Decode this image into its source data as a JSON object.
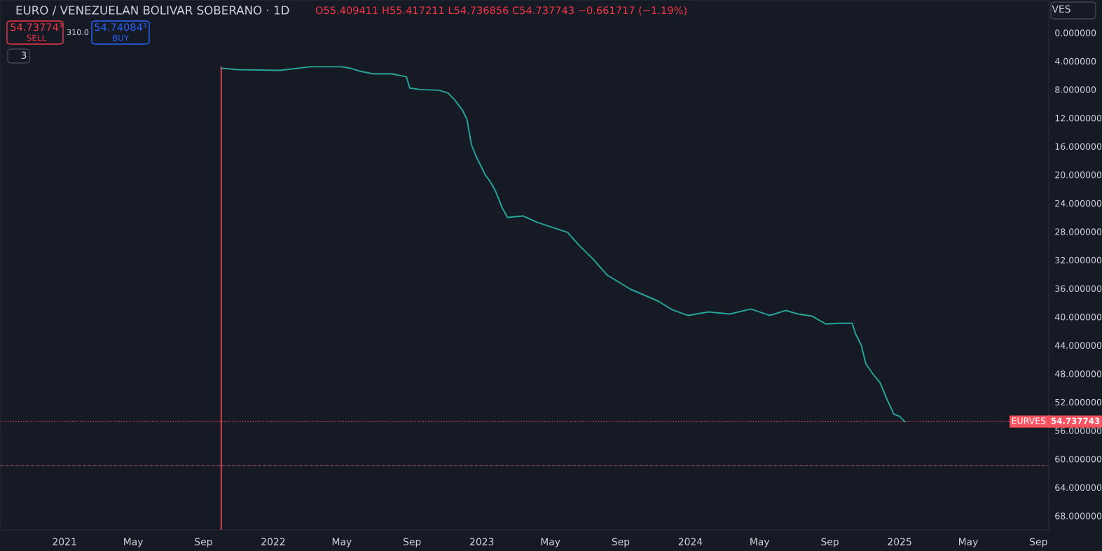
{
  "chart_data": {
    "type": "line",
    "title": "EURO / VENEZUELAN BOLIVAR SOBERANO · 1D",
    "annotations": [
      "O55.409411 H55.417211 L54.736856 C54.737743 −0.661717 (−1.19%)",
      "54.73774³",
      "SELL",
      "310.0",
      "54.74084³",
      "BUY",
      "3",
      "VES",
      "54.737743"
    ],
    "x": [
      "2021-10-02",
      "2021-11-01",
      "2022-01-13",
      "2022-03-07",
      "2022-04-30",
      "2022-05-16",
      "2022-06-01",
      "2022-06-25",
      "2022-07-28",
      "2022-08-22",
      "2022-08-28",
      "2022-09-15",
      "2022-10-18",
      "2022-11-03",
      "2022-11-15",
      "2022-11-28",
      "2022-12-06",
      "2022-12-14",
      "2022-12-22",
      "2023-01-07",
      "2023-01-16",
      "2023-01-25",
      "2023-02-06",
      "2023-02-15",
      "2023-03-14",
      "2023-04-08",
      "2023-05-31",
      "2023-06-20",
      "2023-07-15",
      "2023-08-08",
      "2023-09-18",
      "2023-11-06",
      "2023-11-30",
      "2023-12-28",
      "2024-02-02",
      "2024-03-10",
      "2024-04-16",
      "2024-05-19",
      "2024-06-16",
      "2024-07-07",
      "2024-08-01",
      "2024-08-25",
      "2024-09-19",
      "2024-10-10",
      "2024-10-16",
      "2024-10-26",
      "2024-11-03",
      "2024-11-15",
      "2024-11-28",
      "2024-12-10",
      "2024-12-22",
      "2025-01-01",
      "2025-01-10"
    ],
    "series": [
      {
        "color": "#26a69a",
        "values": [
          5.0,
          5.2,
          5.3,
          4.8,
          4.8,
          5.0,
          5.4,
          5.8,
          5.8,
          6.2,
          7.8,
          8.0,
          8.1,
          8.5,
          9.5,
          10.9,
          12.2,
          15.8,
          17.4,
          20.0,
          21.0,
          22.3,
          24.7,
          26.0,
          25.8,
          26.7,
          28.1,
          29.9,
          31.9,
          34.1,
          36.1,
          37.8,
          39.0,
          39.8,
          39.3,
          39.6,
          38.9,
          39.8,
          39.1,
          39.6,
          39.9,
          41.0,
          40.9,
          40.9,
          42.4,
          44.0,
          46.6,
          48.0,
          49.3,
          51.6,
          53.7,
          54.0,
          54.737743
        ]
      }
    ],
    "xlim": [
      "2020-09-10",
      "2025-09-19"
    ],
    "xticks": [
      {
        "value": "2021-01-01",
        "label": "2021"
      },
      {
        "value": "2021-05-01",
        "label": "May"
      },
      {
        "value": "2021-09-01",
        "label": "Sep"
      },
      {
        "value": "2022-01-01",
        "label": "2022"
      },
      {
        "value": "2022-05-01",
        "label": "May"
      },
      {
        "value": "2022-09-01",
        "label": "Sep"
      },
      {
        "value": "2023-01-01",
        "label": "2023"
      },
      {
        "value": "2023-05-01",
        "label": "May"
      },
      {
        "value": "2023-09-01",
        "label": "Sep"
      },
      {
        "value": "2024-01-01",
        "label": "2024"
      },
      {
        "value": "2024-05-01",
        "label": "May"
      },
      {
        "value": "2024-09-01",
        "label": "Sep"
      },
      {
        "value": "2025-01-01",
        "label": "2025"
      },
      {
        "value": "2025-05-01",
        "label": "May"
      },
      {
        "value": "2025-09-01",
        "label": "Sep"
      }
    ],
    "ylim": [
      70.0,
      -4.6
    ],
    "yticks": [
      {
        "value": 0,
        "label": "0.000000"
      },
      {
        "value": 4,
        "label": "4.000000"
      },
      {
        "value": 8,
        "label": "8.000000"
      },
      {
        "value": 12,
        "label": "12.000000"
      },
      {
        "value": 16,
        "label": "16.000000"
      },
      {
        "value": 20,
        "label": "20.000000"
      },
      {
        "value": 24,
        "label": "24.000000"
      },
      {
        "value": 28,
        "label": "28.000000"
      },
      {
        "value": 32,
        "label": "32.000000"
      },
      {
        "value": 36,
        "label": "36.000000"
      },
      {
        "value": 40,
        "label": "40.000000"
      },
      {
        "value": 44,
        "label": "44.000000"
      },
      {
        "value": 48,
        "label": "48.000000"
      },
      {
        "value": 52,
        "label": "52.000000"
      },
      {
        "value": 56,
        "label": "56.000000"
      },
      {
        "value": 60,
        "label": "60.000000"
      },
      {
        "value": 64,
        "label": "64.000000"
      },
      {
        "value": 68,
        "label": "68.000000"
      }
    ],
    "ref_lines": [
      {
        "axis": "y",
        "value": 54.737743,
        "label": "EURVES",
        "color": "#f7525f",
        "line_style": "dotted"
      },
      {
        "axis": "y",
        "value": 60.9,
        "color": "#8a4a55",
        "line_style": "dashed"
      },
      {
        "axis": "x",
        "value": "2021-10-02",
        "color": "#f7525f",
        "line_style": "solid"
      }
    ],
    "grid": false,
    "legend": false,
    "marker": "none",
    "line_style": "solid"
  }
}
